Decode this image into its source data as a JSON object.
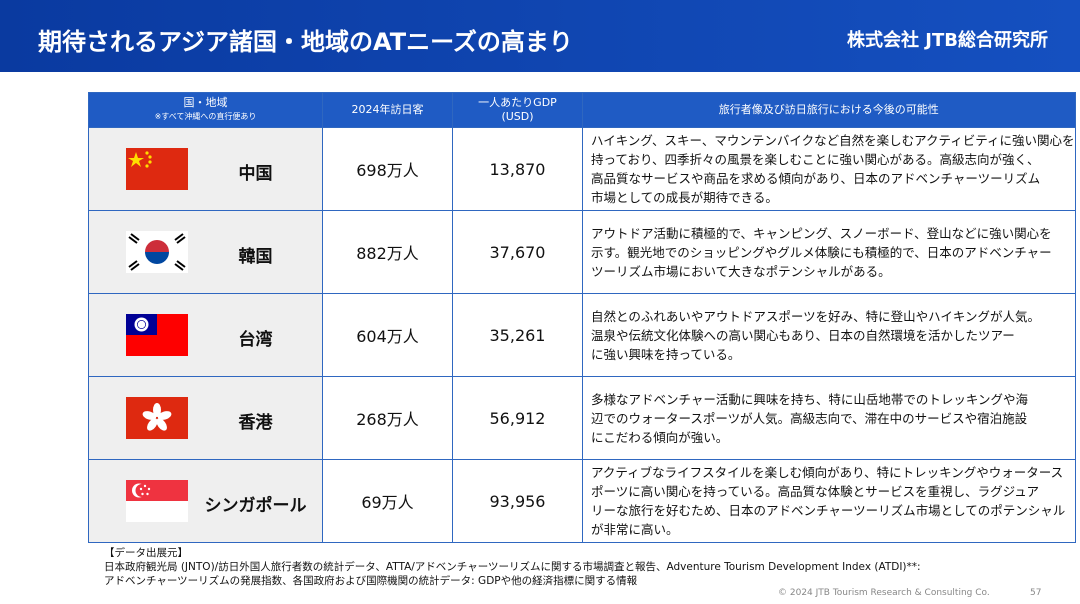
{
  "header": {
    "title": "期待されるアジア諸国・地域のATニーズの高まり",
    "company": "株式会社 JTB総合研究所"
  },
  "table": {
    "columns": [
      [
        "国・地域",
        "※すべて沖縄への直行便あり"
      ],
      [
        "2024年訪日客"
      ],
      [
        "一人あたりGDP",
        "(USD)"
      ],
      [
        "旅行者像及び訪日旅行における今後の可能性"
      ]
    ],
    "rows": [
      {
        "country": "中国",
        "visitors": "698万人",
        "gdp": "13,870",
        "description": [
          "ハイキング、スキー、マウンテンバイクなど自然を楽しむアクティビティに強い関心を",
          "持っており、四季折々の風景を楽しむことに強い関心がある。高級志向が強く、",
          "高品質なサービスや商品を求める傾向があり、日本のアドベンチャーツーリズム",
          "市場としての成長が期待できる。"
        ]
      },
      {
        "country": "韓国",
        "visitors": "882万人",
        "gdp": "37,670",
        "description": [
          "アウトドア活動に積極的で、キャンピング、スノーボード、登山などに強い関心を",
          "示す。観光地でのショッピングやグルメ体験にも積極的で、日本のアドベンチャー",
          "ツーリズム市場において大きなポテンシャルがある。"
        ]
      },
      {
        "country": "台湾",
        "visitors": "604万人",
        "gdp": "35,261",
        "description": [
          "自然とのふれあいやアウトドアスポーツを好み、特に登山やハイキングが人気。",
          "温泉や伝統文化体験への高い関心もあり、日本の自然環境を活かしたツアー",
          "に強い興味を持っている。"
        ]
      },
      {
        "country": "香港",
        "visitors": "268万人",
        "gdp": "56,912",
        "description": [
          "多様なアドベンチャー活動に興味を持ち、特に山岳地帯でのトレッキングや海",
          "辺でのウォータースポーツが人気。高級志向で、滞在中のサービスや宿泊施設",
          "にこだわる傾向が強い。"
        ]
      },
      {
        "country": "シンガポール",
        "visitors": "69万人",
        "gdp": "93,956",
        "description": [
          "アクティブなライフスタイルを楽しむ傾向があり、特にトレッキングやウォータース",
          "ポーツに高い関心を持っている。高品質な体験とサービスを重視し、ラグジュア",
          "リーな旅行を好むため、日本のアドベンチャーツーリズム市場としてのポテンシャル",
          "が非常に高い。"
        ]
      }
    ]
  },
  "footer": {
    "source_title": "【データ出展元】",
    "sources": [
      "日本政府観光局 (JNTO)/訪日外国人旅行者数の統計データ、ATTA/アドベンチャーツーリズムに関する市場調査と報告、Adventure Tourism Development Index (ATDI)**:",
      "アドベンチャーツーリズムの発展指数、各国政府および国際機関の統計データ: GDPや他の経済指標に関する情報"
    ],
    "copyright": "© 2024 JTB Tourism Research & Consulting Co.",
    "page": "57"
  }
}
